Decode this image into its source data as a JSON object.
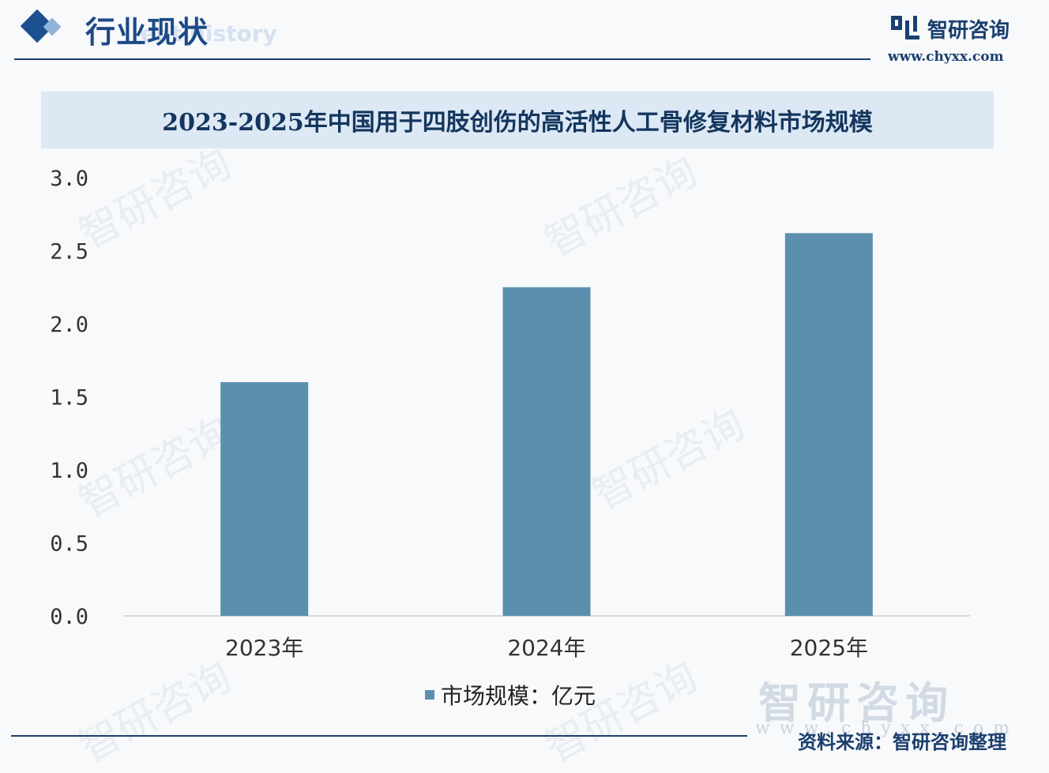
{
  "header": {
    "title": "行业现状",
    "ghost_text": "ent history"
  },
  "brand": {
    "name": "智研咨询",
    "url": "www.chyxx.com",
    "color": "#1b3f6e"
  },
  "watermark": {
    "text": "智研咨询"
  },
  "chart_data": {
    "type": "bar",
    "title": "2023-2025年中国用于四肢创伤的高活性人工骨修复材料市场规模",
    "categories": [
      "2023年",
      "2024年",
      "2025年"
    ],
    "series": [
      {
        "name": "市场规模：亿元",
        "values": [
          1.6,
          2.25,
          2.62
        ],
        "color": "#5b8fae"
      }
    ],
    "ylim": [
      0,
      3.0
    ],
    "yticks": [
      "0.0",
      "0.5",
      "1.0",
      "1.5",
      "2.0",
      "2.5",
      "3.0"
    ],
    "xlabel": "",
    "ylabel": "",
    "grid": false,
    "legend": "bottom-center"
  },
  "legend": {
    "label": "市场规模：亿元"
  },
  "footer": {
    "brand_ghost": "智研咨询",
    "url_ghost": "www.chyxx.com",
    "source": "资料来源：智研咨询整理"
  }
}
